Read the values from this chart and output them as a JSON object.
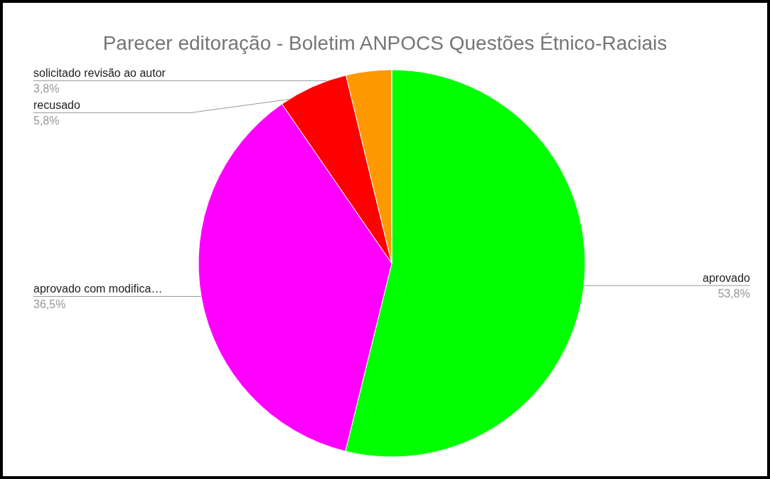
{
  "chart_data": {
    "type": "pie",
    "title": "Parecer editoração - Boletim ANPOCS Questões Étnico-Raciais",
    "categories": [
      "aprovado",
      "aprovado com modifica…",
      "recusado",
      "solicitado revisão ao autor"
    ],
    "values": [
      53.8,
      36.5,
      5.8,
      3.8
    ],
    "value_labels": [
      "53,8%",
      "36,5%",
      "5,8%",
      "3,8%"
    ],
    "colors": [
      "#00ff00",
      "#ff00ff",
      "#ff0000",
      "#ff9900"
    ]
  }
}
